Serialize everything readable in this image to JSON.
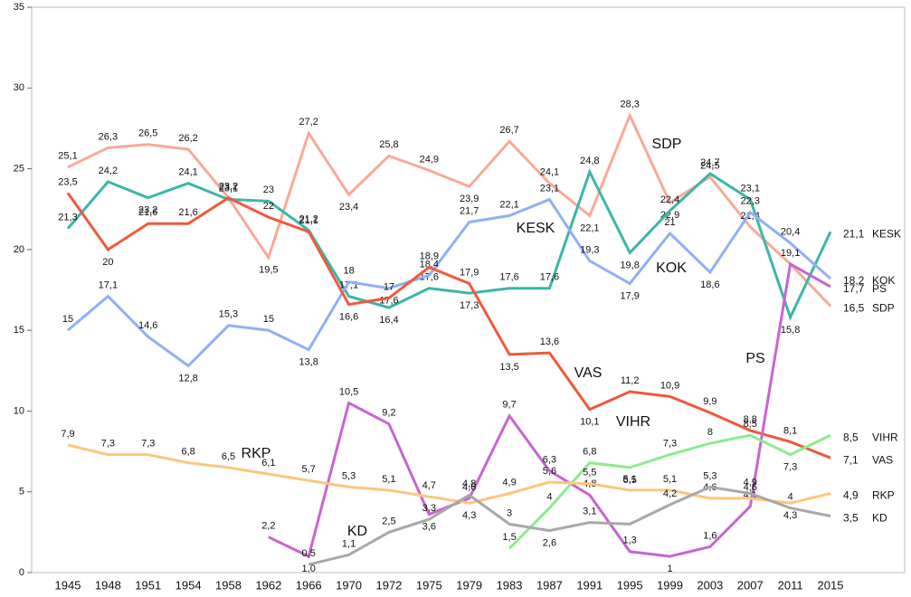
{
  "chart_data": {
    "type": "line",
    "categories": [
      "1945",
      "1948",
      "1951",
      "1954",
      "1958",
      "1962",
      "1966",
      "1970",
      "1972",
      "1975",
      "1979",
      "1983",
      "1987",
      "1991",
      "1995",
      "1999",
      "2003",
      "2007",
      "2011",
      "2015"
    ],
    "ylim": [
      0,
      35
    ],
    "yticks": [
      0,
      5,
      10,
      15,
      20,
      25,
      30,
      35
    ],
    "grid": false,
    "series": [
      {
        "name": "SDP",
        "color": "#f9a998",
        "values": [
          25.1,
          26.3,
          26.5,
          26.2,
          23.2,
          19.5,
          27.2,
          23.4,
          25.8,
          24.9,
          23.9,
          26.7,
          24.1,
          22.1,
          28.3,
          22.9,
          24.5,
          21.4,
          19.1,
          16.5
        ],
        "value_labels": [
          "25,1",
          "26,3",
          "26,5",
          "26,2",
          "23,2",
          "19,5",
          "27,2",
          "23,4",
          "25,8",
          "24,9",
          "23,9",
          "26,7",
          "24,1",
          "22,1",
          "28,3",
          "22,9",
          "24,5",
          "21,4",
          null,
          "16,5"
        ]
      },
      {
        "name": "KESK",
        "color": "#3db5a8",
        "values": [
          21.3,
          24.2,
          23.2,
          24.1,
          23.1,
          23.0,
          21.2,
          17.1,
          16.4,
          17.6,
          17.3,
          17.6,
          17.6,
          24.8,
          19.8,
          22.4,
          24.7,
          23.1,
          15.8,
          21.1
        ],
        "value_labels": [
          "21,3",
          "24,2",
          "23,2",
          "24,1",
          "23,1",
          "23",
          "21,2",
          "17,1",
          "16,4",
          "17,6",
          "17,3",
          "17,6",
          "17,6",
          "24,8",
          "19,8",
          "22,4",
          "24,7",
          "23,1",
          "15,8",
          "21,1"
        ]
      },
      {
        "name": "KOK",
        "color": "#8fb0f5",
        "values": [
          15.0,
          17.1,
          14.6,
          12.8,
          15.3,
          15.0,
          13.8,
          18.0,
          17.6,
          18.4,
          21.7,
          22.1,
          23.1,
          19.3,
          17.9,
          21.0,
          18.6,
          22.3,
          20.4,
          18.2
        ],
        "value_labels": [
          "15",
          "17,1",
          "14,6",
          "12,8",
          "15,3",
          "15",
          "13,8",
          "18",
          "17,6",
          "18,4",
          "21,7",
          "22,1",
          "23,1",
          "19,3",
          "17,9",
          "21",
          "18,6",
          "22,3",
          "20,4",
          "18,2"
        ]
      },
      {
        "name": "VAS",
        "color": "#f0583e",
        "values": [
          23.5,
          20.0,
          21.6,
          21.6,
          23.2,
          22.0,
          21.1,
          16.6,
          17.0,
          18.9,
          17.9,
          13.5,
          13.6,
          10.1,
          11.2,
          10.9,
          9.9,
          8.8,
          8.1,
          7.1
        ],
        "value_labels": [
          "23,5",
          "20",
          "21,6",
          "21,6",
          "23,2",
          "22",
          "21,1",
          "16,6",
          "17",
          "18,9",
          "17,9",
          "13,5",
          "13,6",
          "10,1",
          "11,2",
          "10,9",
          "9,9",
          "8,8",
          "8,1",
          "7,1"
        ]
      },
      {
        "name": "PS",
        "color": "#c765d0",
        "values": [
          null,
          null,
          null,
          null,
          null,
          2.2,
          1.0,
          10.5,
          9.2,
          3.6,
          4.6,
          9.7,
          6.3,
          4.8,
          1.3,
          1.0,
          1.6,
          4.1,
          19.1,
          17.7
        ],
        "value_labels": [
          null,
          null,
          null,
          null,
          null,
          "2,2",
          "1,0",
          "10,5",
          "9,2",
          "3,6",
          "4,6",
          "9,7",
          "6,3",
          "4,8",
          "1,3",
          "1",
          "1,6",
          "4,1",
          "19,1",
          "17,7"
        ]
      },
      {
        "name": "VIHR",
        "color": "#8eea8e",
        "values": [
          null,
          null,
          null,
          null,
          null,
          null,
          null,
          null,
          null,
          null,
          null,
          1.5,
          4.0,
          6.8,
          6.5,
          7.3,
          8.0,
          8.5,
          7.3,
          8.5
        ],
        "value_labels": [
          null,
          null,
          null,
          null,
          null,
          null,
          null,
          null,
          null,
          null,
          null,
          "1,5",
          "4",
          "6,8",
          "6,5",
          "7,3",
          "8",
          "8,5",
          "7,3",
          "8,5"
        ]
      },
      {
        "name": "RKP",
        "color": "#fdc67c",
        "values": [
          7.9,
          7.3,
          7.3,
          6.8,
          6.5,
          6.1,
          5.7,
          5.3,
          5.1,
          4.7,
          4.3,
          4.9,
          5.6,
          5.5,
          5.1,
          5.1,
          4.6,
          4.6,
          4.3,
          4.9
        ],
        "value_labels": [
          "7,9",
          "7,3",
          "7,3",
          "6,8",
          "6,5",
          "6,1",
          "5,7",
          "5,3",
          "5,1",
          "4,7",
          "4,3",
          "4,9",
          "5,6",
          "5,5",
          "5,1",
          "5,1",
          "4,6",
          "4,6",
          "4,3",
          "4,9"
        ]
      },
      {
        "name": "KD",
        "color": "#a8a8a8",
        "values": [
          null,
          null,
          null,
          null,
          null,
          null,
          0.5,
          1.1,
          2.5,
          3.3,
          4.8,
          3.0,
          2.6,
          3.1,
          3.0,
          4.2,
          5.3,
          4.9,
          4.0,
          3.5
        ],
        "value_labels": [
          null,
          null,
          null,
          null,
          null,
          null,
          "0,5",
          "1,1",
          "2,5",
          "3,3",
          "4,8",
          "3",
          "2,6",
          "3,1",
          null,
          "4,2",
          "5,3",
          "4,9",
          "4",
          "3,5"
        ]
      }
    ]
  }
}
